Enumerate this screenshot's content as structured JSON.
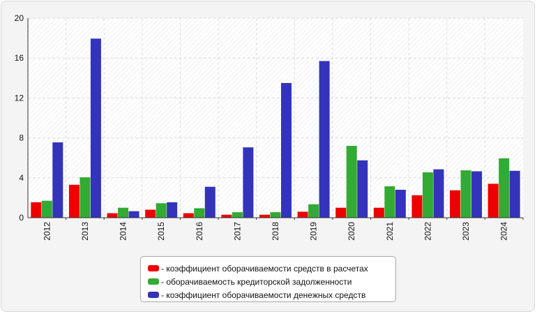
{
  "chart_data": {
    "type": "bar",
    "categories": [
      "2012",
      "2013",
      "2014",
      "2015",
      "2016",
      "2017",
      "2018",
      "2019",
      "2020",
      "2021",
      "2022",
      "2023",
      "2024"
    ],
    "series": [
      {
        "name": "- коэффициент оборачиваемости средств в расчетах",
        "color": "#ee0000",
        "values": [
          1.55,
          3.3,
          0.45,
          0.8,
          0.45,
          0.3,
          0.3,
          0.6,
          1.0,
          1.0,
          2.25,
          2.75,
          3.4
        ]
      },
      {
        "name": "- оборачиваемость кредиторской задолженности",
        "color": "#33aa33",
        "values": [
          1.7,
          4.05,
          1.0,
          1.45,
          0.95,
          0.55,
          0.55,
          1.35,
          7.2,
          3.15,
          4.55,
          4.75,
          5.95
        ]
      },
      {
        "name": "- коэффициент оборачиваемости денежных средств",
        "color": "#3333bb",
        "values": [
          7.55,
          17.95,
          0.65,
          1.55,
          3.1,
          7.05,
          13.5,
          15.7,
          5.75,
          2.8,
          4.85,
          4.65,
          4.7
        ]
      }
    ],
    "yticks": [
      0,
      4,
      8,
      12,
      16,
      20
    ],
    "ylim": [
      0,
      20
    ],
    "grid": true,
    "legend_position": "bottom"
  }
}
